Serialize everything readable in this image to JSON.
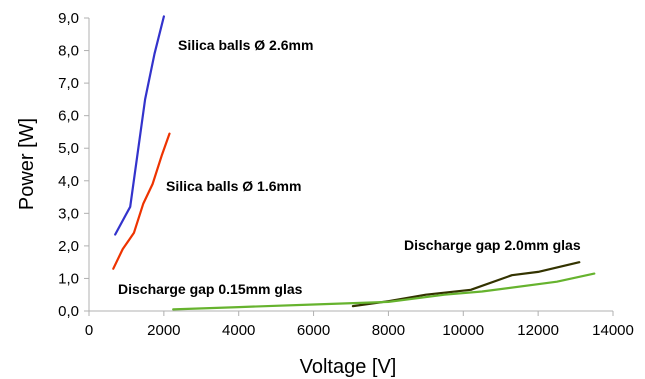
{
  "chart_data": {
    "type": "line",
    "title": "",
    "xlabel": "Voltage [V]",
    "ylabel": "Power [W]",
    "xlim": [
      0,
      14000
    ],
    "ylim": [
      0,
      9
    ],
    "xticks": [
      0,
      2000,
      4000,
      6000,
      8000,
      10000,
      12000,
      14000
    ],
    "xtick_labels": [
      "0",
      "2000",
      "4000",
      "6000",
      "8000",
      "10000",
      "12000",
      "14000"
    ],
    "yticks": [
      0,
      1,
      2,
      3,
      4,
      5,
      6,
      7,
      8,
      9
    ],
    "ytick_labels": [
      "0,0",
      "1,0",
      "2,0",
      "3,0",
      "4,0",
      "5,0",
      "6,0",
      "7,0",
      "8,0",
      "9,0"
    ],
    "grid": false,
    "legend": "none",
    "series": [
      {
        "color": "#3333cc",
        "points": [
          [
            700,
            2.35
          ],
          [
            1100,
            3.2
          ],
          [
            1500,
            6.5
          ],
          [
            1750,
            7.9
          ],
          [
            2000,
            9.05
          ]
        ]
      },
      {
        "color": "#ee3300",
        "points": [
          [
            650,
            1.3
          ],
          [
            900,
            1.9
          ],
          [
            1200,
            2.4
          ],
          [
            1450,
            3.3
          ],
          [
            1700,
            3.9
          ],
          [
            1950,
            4.8
          ],
          [
            2150,
            5.45
          ]
        ]
      },
      {
        "color": "#333300",
        "points": [
          [
            7050,
            0.15
          ],
          [
            8000,
            0.3
          ],
          [
            9000,
            0.5
          ],
          [
            10200,
            0.65
          ],
          [
            11300,
            1.1
          ],
          [
            12000,
            1.2
          ],
          [
            13100,
            1.5
          ]
        ]
      },
      {
        "color": "#66b32e",
        "points": [
          [
            2250,
            0.05
          ],
          [
            4000,
            0.12
          ],
          [
            6000,
            0.2
          ],
          [
            8000,
            0.28
          ],
          [
            9500,
            0.5
          ],
          [
            10500,
            0.6
          ],
          [
            12500,
            0.9
          ],
          [
            13500,
            1.15
          ]
        ]
      }
    ],
    "annotations": [
      {
        "text": "Silica balls Ø 2.6mm"
      },
      {
        "text": "Silica balls Ø 1.6mm"
      },
      {
        "text": "Discharge gap 2.0mm glas"
      },
      {
        "text": "Discharge gap 0.15mm glas"
      }
    ]
  }
}
